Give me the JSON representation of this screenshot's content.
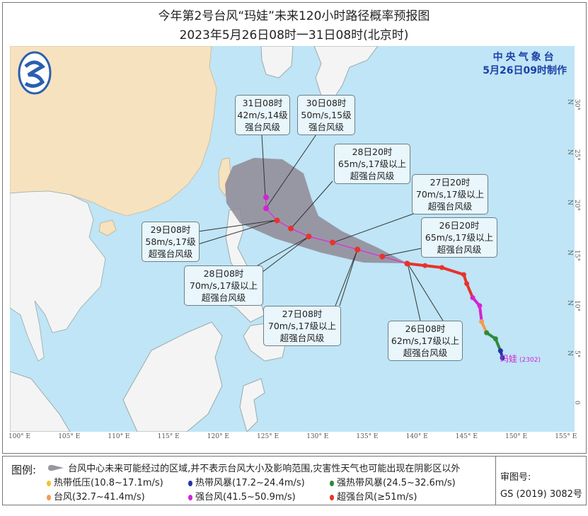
{
  "title": "今年第2号台风“玛娃”未来120小时路径概率预报图",
  "subtitle": "2023年5月26日08时一31日08时(北京时)",
  "issuer": {
    "name": "中央气象台",
    "made": "5月26日09时制作"
  },
  "typhoon_label": {
    "name": "玛娃",
    "code": "(2302)"
  },
  "colors": {
    "sea": "#bfe5f6",
    "china": "#f6e2bf",
    "land": "#f4f4f4",
    "track": "#d63bd6",
    "super": "#e8332a",
    "strong": "#d522d5",
    "typhoon": "#f29a55",
    "severe_storm": "#2e8b3a",
    "storm": "#2233aa",
    "depression": "#f2c233",
    "cone": "#8f8a95"
  },
  "lon_ticks": [
    "100° E",
    "105° E",
    "110° E",
    "115° E",
    "120° E",
    "125° E",
    "130° E",
    "135° E",
    "140° E",
    "145° E",
    "150° E",
    "155° E"
  ],
  "lat_ticks": [
    "30° N",
    "25° N",
    "20° N",
    "15° N",
    "10° N",
    "5° N",
    "0"
  ],
  "forecast": [
    {
      "time": "26日08时",
      "wind": "62m/s,17级以上",
      "grade": "超强台风级",
      "lon": 139.7,
      "lat": 14.3
    },
    {
      "time": "26日20时",
      "wind": "65m/s,17级以上",
      "grade": "超强台风级",
      "lon": 137.2,
      "lat": 15.0
    },
    {
      "time": "27日08时",
      "wind": "70m/s,17级以上",
      "grade": "超强台风级",
      "lon": 134.7,
      "lat": 15.7
    },
    {
      "time": "27日20时",
      "wind": "70m/s,17级以上",
      "grade": "超强台风级",
      "lon": 132.2,
      "lat": 16.4
    },
    {
      "time": "28日08时",
      "wind": "70m/s,17级以上",
      "grade": "超强台风级",
      "lon": 129.8,
      "lat": 17.0
    },
    {
      "time": "28日20时",
      "wind": "65m/s,17级以上",
      "grade": "超强台风级",
      "lon": 128.0,
      "lat": 17.8
    },
    {
      "time": "29日08时",
      "wind": "58m/s,17级",
      "grade": "超强台风级",
      "lon": 126.6,
      "lat": 18.6
    },
    {
      "time": "30日08时",
      "wind": "50m/s,15级",
      "grade": "强台风级",
      "lon": 125.5,
      "lat": 19.8
    },
    {
      "time": "31日08时",
      "wind": "42m/s,14级",
      "grade": "强台风级",
      "lon": 125.5,
      "lat": 20.9
    }
  ],
  "past_track": [
    {
      "lon": 149.3,
      "lat": 4.9,
      "cat": "storm"
    },
    {
      "lon": 149.1,
      "lat": 5.6,
      "cat": "storm"
    },
    {
      "lon": 148.6,
      "lat": 6.8,
      "cat": "severe_storm"
    },
    {
      "lon": 147.7,
      "lat": 7.4,
      "cat": "severe_storm"
    },
    {
      "lon": 147.2,
      "lat": 8.5,
      "cat": "typhoon"
    },
    {
      "lon": 147.0,
      "lat": 10.1,
      "cat": "strong"
    },
    {
      "lon": 146.3,
      "lat": 10.9,
      "cat": "strong"
    },
    {
      "lon": 145.7,
      "lat": 12.3,
      "cat": "super"
    },
    {
      "lon": 145.4,
      "lat": 13.2,
      "cat": "super"
    },
    {
      "lon": 143.2,
      "lat": 13.9,
      "cat": "super"
    },
    {
      "lon": 141.5,
      "lat": 14.1,
      "cat": "super"
    },
    {
      "lon": 139.7,
      "lat": 14.3,
      "cat": "super"
    }
  ],
  "legend": {
    "label": "图例:",
    "cone": "台风中心未来可能经过的区域,并不表示台风大小及影响范围,灾害性天气也可能出现在阴影区以外",
    "items": [
      {
        "label": "热带低压(10.8~17.1m/s)",
        "color": "#f2c233"
      },
      {
        "label": "热带风暴(17.2~24.4m/s)",
        "color": "#2233aa"
      },
      {
        "label": "强热带风暴(24.5~32.6m/s)",
        "color": "#2e8b3a"
      },
      {
        "label": "台风(32.7~41.4m/s)",
        "color": "#f29a55"
      },
      {
        "label": "强台风(41.5~50.9m/s)",
        "color": "#d522d5"
      },
      {
        "label": "超强台风(≥51m/s)",
        "color": "#e8332a"
      }
    ],
    "approval_label": "审图号:",
    "approval_no": "GS (2019) 3082号"
  }
}
